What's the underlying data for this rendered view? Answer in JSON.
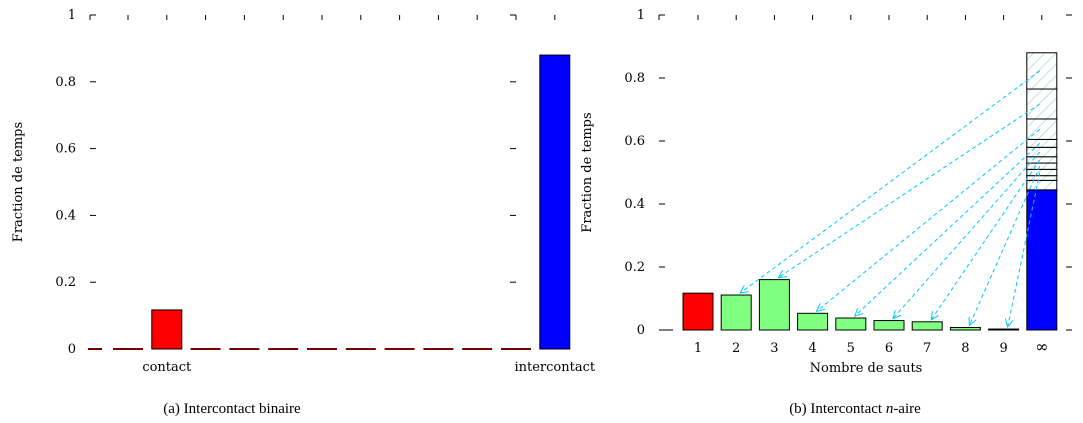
{
  "chart_data": [
    {
      "type": "bar",
      "caption": {
        "prefix": "(a)  Intercontact binaire"
      },
      "ylabel": "Fraction de temps",
      "xlabel": "",
      "ylim": [
        0,
        1
      ],
      "yticks": [
        "0",
        "0.2",
        "0.4",
        "0.6",
        "0.8",
        "1"
      ],
      "ytick_values": [
        0,
        0.2,
        0.4,
        0.6,
        0.8,
        1
      ],
      "categories": [
        "",
        "contact",
        "",
        "",
        "",
        "",
        "",
        "",
        "",
        "",
        "",
        "intercontact"
      ],
      "category_labels_shown": [
        "contact",
        "intercontact"
      ],
      "values": [
        0,
        0.117,
        0,
        0,
        0,
        0,
        0,
        0,
        0,
        0,
        0,
        0.88
      ],
      "colors": {
        "contact": "#ff0000",
        "intercontact": "#0000ff",
        "empty": "#7a0000"
      }
    },
    {
      "type": "bar",
      "caption": {
        "prefix": "(b)  Intercontact ",
        "italic": "n",
        "suffix": "-aire"
      },
      "ylabel": "Fraction de temps",
      "xlabel": "Nombre de sauts",
      "ylim": [
        0,
        1
      ],
      "yticks": [
        "0",
        "0.2",
        "0.4",
        "0.6",
        "0.8",
        "1"
      ],
      "ytick_values": [
        0,
        0.2,
        0.4,
        0.6,
        0.8,
        1
      ],
      "categories": [
        "1",
        "2",
        "3",
        "4",
        "5",
        "6",
        "7",
        "8",
        "9",
        "∞"
      ],
      "values": [
        0.117,
        0.111,
        0.16,
        0.053,
        0.038,
        0.03,
        0.026,
        0.008,
        0.003,
        0.445
      ],
      "stacked_segments_top": [
        0.445,
        0.475,
        0.49,
        0.51,
        0.53,
        0.55,
        0.58,
        0.605,
        0.67,
        0.765,
        0.88
      ],
      "colors": {
        "first": "#ff0000",
        "middle": "#80ff80",
        "last": "#0000ff",
        "hatch": "#a8c4d0",
        "arrow": "#00c8ff"
      }
    }
  ]
}
